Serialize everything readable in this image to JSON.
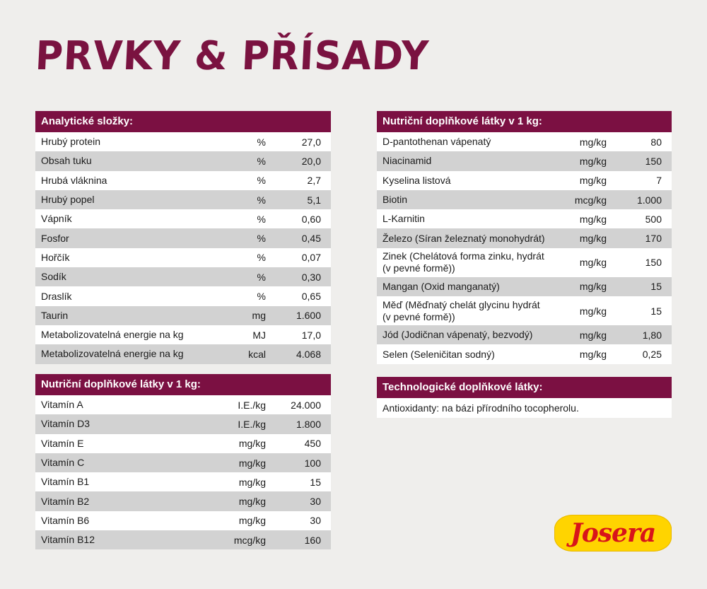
{
  "title": "PRVKY & PŘÍSADY",
  "analytical": {
    "header": "Analytické složky:",
    "rows": [
      {
        "name": "Hrubý protein",
        "unit": "%",
        "value": "27,0"
      },
      {
        "name": "Obsah tuku",
        "unit": "%",
        "value": "20,0"
      },
      {
        "name": "Hrubá vláknina",
        "unit": "%",
        "value": "2,7"
      },
      {
        "name": "Hrubý popel",
        "unit": "%",
        "value": "5,1"
      },
      {
        "name": "Vápník",
        "unit": "%",
        "value": "0,60"
      },
      {
        "name": "Fosfor",
        "unit": "%",
        "value": "0,45"
      },
      {
        "name": "Hořčík",
        "unit": "%",
        "value": "0,07"
      },
      {
        "name": "Sodík",
        "unit": "%",
        "value": "0,30"
      },
      {
        "name": "Draslík",
        "unit": "%",
        "value": "0,65"
      },
      {
        "name": "Taurin",
        "unit": "mg",
        "value": "1.600"
      },
      {
        "name": "Metabolizovatelná energie na kg",
        "unit": "MJ",
        "value": "17,0"
      },
      {
        "name": "Metabolizovatelná energie na kg",
        "unit": "kcal",
        "value": "4.068"
      }
    ]
  },
  "vitamins": {
    "header": "Nutriční doplňkové látky v 1 kg:",
    "rows": [
      {
        "name": "Vitamín A",
        "unit": "I.E./kg",
        "value": "24.000"
      },
      {
        "name": "Vitamín D3",
        "unit": "I.E./kg",
        "value": "1.800"
      },
      {
        "name": "Vitamín E",
        "unit": "mg/kg",
        "value": "450"
      },
      {
        "name": "Vitamín C",
        "unit": "mg/kg",
        "value": "100"
      },
      {
        "name": "Vitamín B1",
        "unit": "mg/kg",
        "value": "15"
      },
      {
        "name": "Vitamín B2",
        "unit": "mg/kg",
        "value": "30"
      },
      {
        "name": "Vitamín B6",
        "unit": "mg/kg",
        "value": "30"
      },
      {
        "name": "Vitamín B12",
        "unit": "mcg/kg",
        "value": "160"
      }
    ]
  },
  "nutritional": {
    "header": "Nutriční doplňkové látky v 1 kg:",
    "rows": [
      {
        "name": "D-pantothenan vápenatý",
        "unit": "mg/kg",
        "value": "80"
      },
      {
        "name": "Niacinamid",
        "unit": "mg/kg",
        "value": "150"
      },
      {
        "name": "Kyselina listová",
        "unit": "mg/kg",
        "value": "7"
      },
      {
        "name": "Biotin",
        "unit": "mcg/kg",
        "value": "1.000"
      },
      {
        "name": "L-Karnitin",
        "unit": "mg/kg",
        "value": "500"
      },
      {
        "name": "Železo (Síran železnatý monohydrát)",
        "unit": "mg/kg",
        "value": "170"
      },
      {
        "name": "Zinek (Chelátová forma zinku, hydrát (v pevné formě))",
        "unit": "mg/kg",
        "value": "150",
        "tall": true
      },
      {
        "name": "Mangan (Oxid manganatý)",
        "unit": "mg/kg",
        "value": "15"
      },
      {
        "name": "Měď (Měďnatý chelát glycinu hydrát (v pevné formě))",
        "unit": "mg/kg",
        "value": "15",
        "tall": true
      },
      {
        "name": "Jód (Jodičnan vápenatý, bezvodý)",
        "unit": "mg/kg",
        "value": "1,80"
      },
      {
        "name": "Selen (Seleničitan sodný)",
        "unit": "mg/kg",
        "value": "0,25"
      }
    ]
  },
  "technological": {
    "header": "Technologické doplňkové látky:",
    "text": "Antioxidanty: na bázi přírodního tocopherolu."
  },
  "logo": {
    "text": "Josera"
  },
  "colors": {
    "accent": "#7b1042",
    "logo_bg": "#ffd400",
    "logo_text": "#d8141a"
  }
}
